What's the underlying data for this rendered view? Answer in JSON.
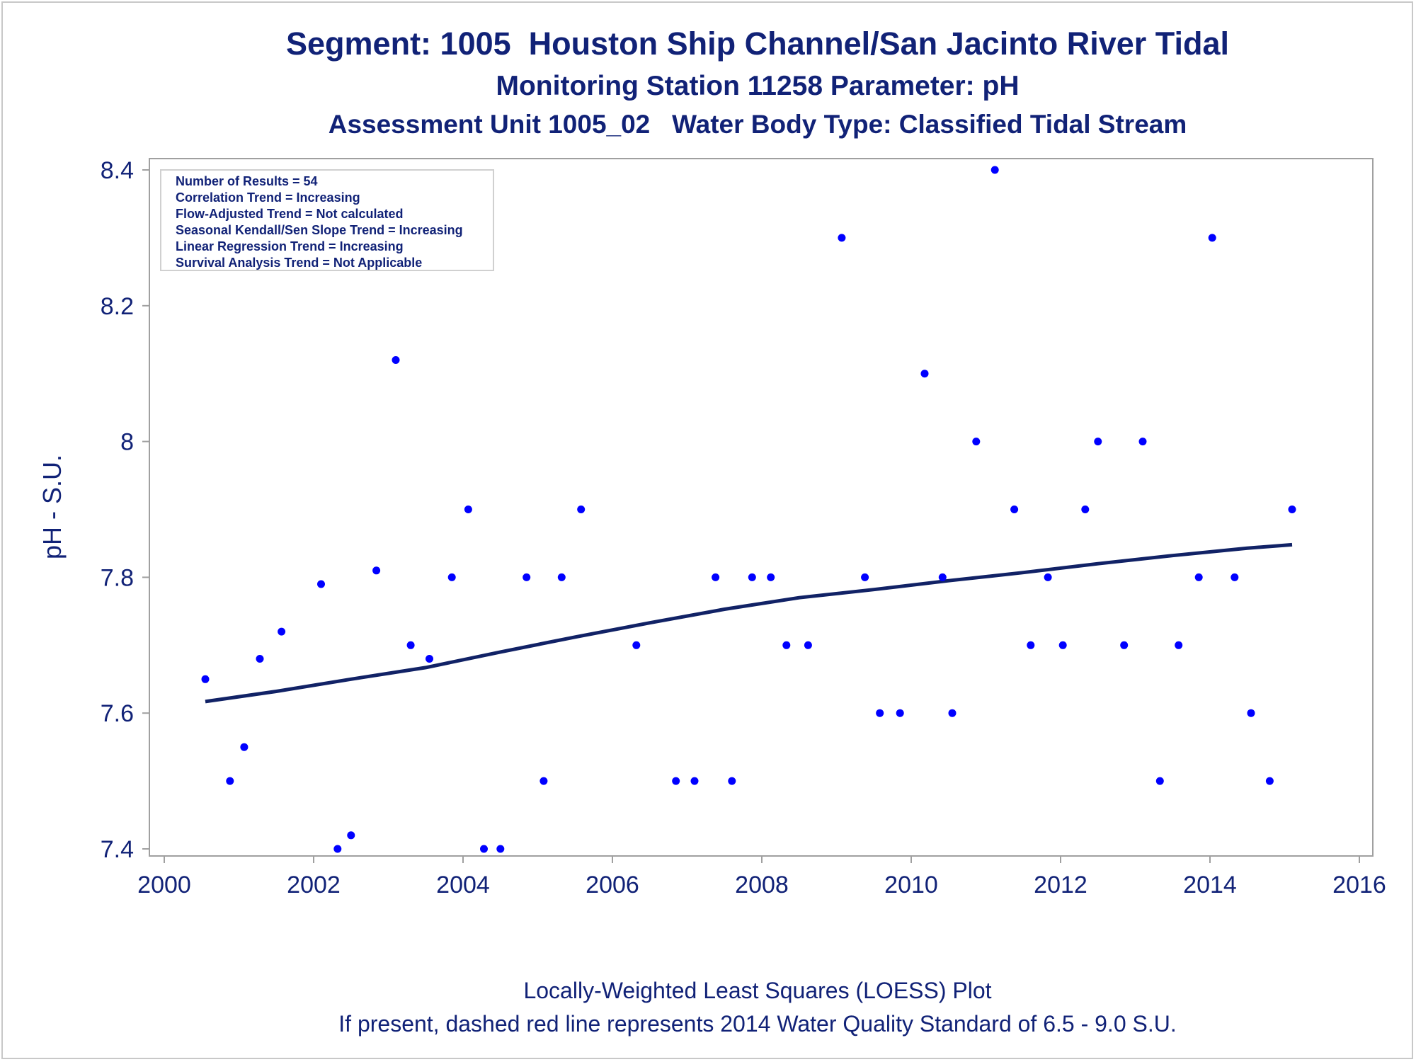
{
  "titles": {
    "line1": "Segment: 1005  Houston Ship Channel/San Jacinto River Tidal",
    "line2": "Monitoring Station 11258 Parameter: pH",
    "line3": "Assessment Unit 1005_02   Water Body Type: Classified Tidal Stream"
  },
  "footnotes": {
    "line1": "Locally-Weighted Least Squares (LOESS) Plot",
    "line2": "If present, dashed red line represents 2014 Water Quality Standard of 6.5 - 9.0 S.U."
  },
  "stats_box": {
    "lines": [
      "Number of Results = 54",
      "Correlation Trend = Increasing",
      "Flow-Adjusted Trend = Not calculated",
      "Seasonal Kendall/Sen Slope Trend = Increasing",
      "Linear Regression Trend = Increasing",
      "Survival Analysis Trend = Not Applicable"
    ]
  },
  "colors": {
    "text": "#112277",
    "points": "#0000ff",
    "trend_line": "#112266",
    "frame": "#a0a0a0"
  },
  "chart_data": {
    "type": "scatter",
    "ylabel": "pH - S.U.",
    "xlabel": "",
    "xlim": [
      2000,
      2016
    ],
    "ylim": [
      7.4,
      8.4
    ],
    "x_ticks": [
      2000,
      2002,
      2004,
      2006,
      2008,
      2010,
      2012,
      2014,
      2016
    ],
    "y_ticks": [
      7.4,
      7.6,
      7.8,
      8,
      8.2,
      8.4
    ],
    "y_tick_labels": [
      "7.4",
      "7.6",
      "7.8",
      "8",
      "8.2",
      "8.4"
    ],
    "grid": false,
    "series": [
      {
        "type": "scatter",
        "points": [
          [
            2000.55,
            7.65
          ],
          [
            2000.88,
            7.5
          ],
          [
            2001.07,
            7.55
          ],
          [
            2001.28,
            7.68
          ],
          [
            2001.57,
            7.72
          ],
          [
            2002.1,
            7.79
          ],
          [
            2002.32,
            7.4
          ],
          [
            2002.5,
            7.42
          ],
          [
            2002.84,
            7.81
          ],
          [
            2003.1,
            8.12
          ],
          [
            2003.3,
            7.7
          ],
          [
            2003.55,
            7.68
          ],
          [
            2003.85,
            7.8
          ],
          [
            2004.07,
            7.9
          ],
          [
            2004.28,
            7.4
          ],
          [
            2004.5,
            7.4
          ],
          [
            2004.85,
            7.8
          ],
          [
            2005.08,
            7.5
          ],
          [
            2005.32,
            7.8
          ],
          [
            2005.58,
            7.9
          ],
          [
            2006.32,
            7.7
          ],
          [
            2006.85,
            7.5
          ],
          [
            2007.1,
            7.5
          ],
          [
            2007.38,
            7.8
          ],
          [
            2007.6,
            7.5
          ],
          [
            2007.87,
            7.8
          ],
          [
            2008.12,
            7.8
          ],
          [
            2008.33,
            7.7
          ],
          [
            2008.62,
            7.7
          ],
          [
            2009.07,
            8.3
          ],
          [
            2009.38,
            7.8
          ],
          [
            2009.58,
            7.6
          ],
          [
            2009.85,
            7.6
          ],
          [
            2010.18,
            8.1
          ],
          [
            2010.42,
            7.8
          ],
          [
            2010.55,
            7.6
          ],
          [
            2010.87,
            8.0
          ],
          [
            2011.12,
            8.4
          ],
          [
            2011.38,
            7.9
          ],
          [
            2011.6,
            7.7
          ],
          [
            2011.83,
            7.8
          ],
          [
            2012.03,
            7.7
          ],
          [
            2012.33,
            7.9
          ],
          [
            2012.5,
            8.0
          ],
          [
            2012.85,
            7.7
          ],
          [
            2013.1,
            8.0
          ],
          [
            2013.33,
            7.5
          ],
          [
            2013.58,
            7.7
          ],
          [
            2013.85,
            7.8
          ],
          [
            2014.03,
            8.3
          ],
          [
            2014.33,
            7.8
          ],
          [
            2014.55,
            7.6
          ],
          [
            2014.8,
            7.5
          ],
          [
            2015.1,
            7.9
          ]
        ]
      },
      {
        "type": "line",
        "points": [
          [
            2000.55,
            7.617
          ],
          [
            2001.5,
            7.632
          ],
          [
            2002.5,
            7.65
          ],
          [
            2003.5,
            7.667
          ],
          [
            2004.5,
            7.69
          ],
          [
            2005.5,
            7.712
          ],
          [
            2006.5,
            7.733
          ],
          [
            2007.5,
            7.753
          ],
          [
            2008.5,
            7.77
          ],
          [
            2009.5,
            7.782
          ],
          [
            2010.5,
            7.795
          ],
          [
            2011.5,
            7.807
          ],
          [
            2012.5,
            7.82
          ],
          [
            2013.5,
            7.832
          ],
          [
            2014.5,
            7.843
          ],
          [
            2015.1,
            7.848
          ]
        ]
      }
    ]
  }
}
